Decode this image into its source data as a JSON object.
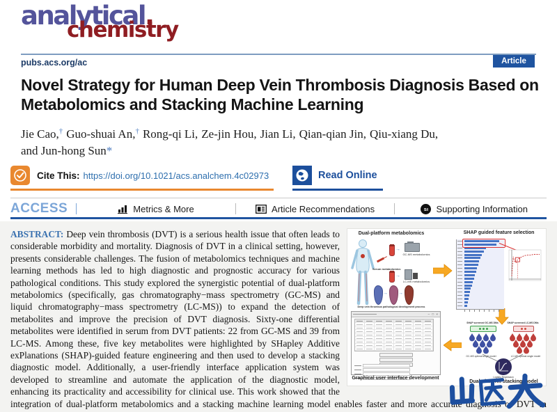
{
  "header": {
    "logo_word1": "analytical",
    "logo_word2": "chemistry",
    "url": "pubs.acs.org/ac",
    "badge": "Article"
  },
  "article": {
    "title": "Novel Strategy for Human Deep Vein Thrombosis Diagnosis Based on Metabolomics and Stacking Machine Learning",
    "authors": [
      {
        "name": "Jie Cao,",
        "mark": "†"
      },
      {
        "name": "Guo-shuai An,",
        "mark": "†"
      },
      {
        "name": "Rong-qi Li,",
        "mark": ""
      },
      {
        "name": "Ze-jin Hou,",
        "mark": ""
      },
      {
        "name": "Jian Li,",
        "mark": ""
      },
      {
        "name": "Qian-qian Jin,",
        "mark": ""
      },
      {
        "name": "Qiu-xiang Du,",
        "mark": ""
      },
      {
        "name": "and Jun-hong Sun",
        "mark": "*"
      }
    ]
  },
  "citation": {
    "cite_label": "Cite This:",
    "doi": "https://doi.org/10.1021/acs.analchem.4c02973",
    "read_online": "Read Online"
  },
  "nav": {
    "access": "ACCESS",
    "metrics": "Metrics & More",
    "recommendations": "Article Recommendations",
    "supporting": "Supporting Information",
    "si_badge": "sı"
  },
  "abstract": {
    "label": "ABSTRACT:",
    "text": "Deep vein thrombosis (DVT) is a serious health issue that often leads to considerable morbidity and mortality. Diagnosis of DVT in a clinical setting, however, presents considerable challenges. The fusion of metabolomics techniques and machine learning methods has led to high diagnostic and prognostic accuracy for various pathological conditions. This study explored the synergistic potential of dual-platform metabolomics (specifically, gas chromatography−mass spectrometry (GC-MS) and liquid chromatography−mass spectrometry (LC-MS)) to expand the detection of metabolites and improve the precision of DVT diagnosis. Sixty-one differential metabolites were identified in serum from DVT patients: 22 from GC-MS and 39 from LC-MS. Among these, five key metabolites were highlighted by SHapley Additive exPlanations (SHAP)-guided feature engineering and then used to develop a stacking diagnostic model. Additionally, a user-friendly interface application system was developed to streamline and automate the application of the diagnostic model, enhancing its practicality and accessibility for clinical use. This work showed that the integration of dual-platform metabolomics and a stacking machine learning model enables faster and more accurate diagnosis of DVT in clinical environments."
  },
  "figure": {
    "panel_metabolomics_title": "Dual-platform metabolomics",
    "panel_shap_title": "SHAP guided feature selection",
    "panel_gui_caption": "Graphical user interface development",
    "panel_stacking_caption": "Dual-platform stacking model",
    "label_serum": "Serum metabolomics",
    "label_gcms": "GC-MS metabolomics",
    "label_lcms": "LC-MS metabolomics",
    "label_vessels": "Deep vein thrombus pathological development process",
    "label_gc_dms": "SHAP screened GC-MS DMs",
    "label_lc_dms": "SHAP screened LC-MS DMs",
    "label_gc_model": "GC-MS optimal single model",
    "label_lc_model": "LC-MS optimal single model",
    "label_lr": "Logistic Regression",
    "shap_bars": [
      100,
      92,
      62,
      56,
      50,
      46,
      42,
      39,
      36,
      33,
      30,
      27,
      24,
      21,
      18,
      15,
      13,
      11,
      9,
      7
    ],
    "accuracy_curve_x": [
      1,
      2,
      3,
      4,
      5,
      6,
      8,
      10,
      12,
      14,
      16,
      18,
      20
    ],
    "accuracy_curve_y": [
      55,
      88,
      80,
      78,
      83,
      85,
      88,
      90,
      91,
      91,
      92,
      92,
      92
    ]
  },
  "watermark": {
    "text": "山医大",
    "color": "#1d4f9f"
  },
  "colors": {
    "accent_orange": "#e9882f",
    "accent_blue": "#1f54a0",
    "access_blue": "#7ca6d8",
    "logo_purple": "#54549b",
    "logo_red": "#8f1d22",
    "link_blue": "#2e6fae",
    "abstract_label_blue": "#3b72b0"
  }
}
